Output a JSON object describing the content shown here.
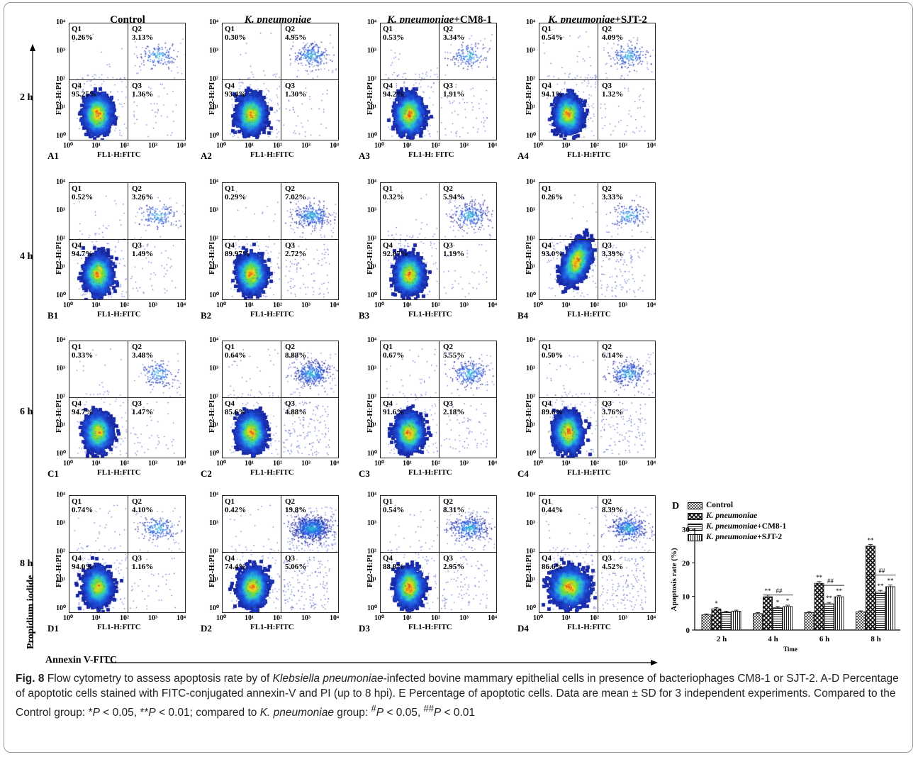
{
  "columns": [
    "Control",
    "K. pneumoniae",
    "K. pneumoniae+CM8-1",
    "K. pneumoniae+SJT-2"
  ],
  "rows": [
    "2 h",
    "4 h",
    "6 h",
    "8 h"
  ],
  "axis": {
    "y_label": "FL2-H:PI",
    "x_label": "FL1-H:FITC",
    "x_label_alt": "FL1-H: FITC"
  },
  "outer_axes": {
    "y": "Propidium iodide",
    "x": "Annexin V-FITC"
  },
  "quadrant_names": [
    "Q1",
    "Q2",
    "Q3",
    "Q4"
  ],
  "panels": [
    {
      "id": "A1",
      "q1": "0.26%",
      "q2": "3.13%",
      "q3": "1.36%",
      "q4": "95.25%"
    },
    {
      "id": "A2",
      "q1": "0.30%",
      "q2": "4.95%",
      "q3": "1.30%",
      "q4": "93.4%"
    },
    {
      "id": "A3",
      "q1": "0.53%",
      "q2": "3.34%",
      "q3": "1.91%",
      "q4": "94.2%"
    },
    {
      "id": "A4",
      "q1": "0.54%",
      "q2": "4.09%",
      "q3": "1.32%",
      "q4": "94.1%"
    },
    {
      "id": "B1",
      "q1": "0.52%",
      "q2": "3.26%",
      "q3": "1.49%",
      "q4": "94.7%"
    },
    {
      "id": "B2",
      "q1": "0.29%",
      "q2": "7.02%",
      "q3": "2.72%",
      "q4": "89.97%"
    },
    {
      "id": "B3",
      "q1": "0.32%",
      "q2": "5.94%",
      "q3": "1.19%",
      "q4": "92.87%"
    },
    {
      "id": "B4",
      "q1": "0.26%",
      "q2": "3.33%",
      "q3": "3.39%",
      "q4": "93.0%"
    },
    {
      "id": "C1",
      "q1": "0.33%",
      "q2": "3.48%",
      "q3": "1.47%",
      "q4": "94.7%"
    },
    {
      "id": "C2",
      "q1": "0.64%",
      "q2": "8.88%",
      "q3": "4.88%",
      "q4": "85.6%"
    },
    {
      "id": "C3",
      "q1": "0.67%",
      "q2": "5.55%",
      "q3": "2.18%",
      "q4": "91.6%"
    },
    {
      "id": "C4",
      "q1": "0.50%",
      "q2": "6.14%",
      "q3": "3.76%",
      "q4": "89.6%"
    },
    {
      "id": "D1",
      "q1": "0.74%",
      "q2": "4.10%",
      "q3": "1.16%",
      "q4": "94.0%"
    },
    {
      "id": "D2",
      "q1": "0.42%",
      "q2": "19.8%",
      "q3": "5.06%",
      "q4": "74.4%"
    },
    {
      "id": "D3",
      "q1": "0.54%",
      "q2": "8.31%",
      "q3": "2.95%",
      "q4": "88.8%"
    },
    {
      "id": "D4",
      "q1": "0.44%",
      "q2": "8.39%",
      "q3": "4.52%",
      "q4": "86.6%"
    }
  ],
  "chart_data": {
    "type": "bar",
    "panel_label": "D",
    "categories": [
      "2 h",
      "4 h",
      "6 h",
      "8 h"
    ],
    "xlabel": "Time",
    "ylabel": "Apoptosis rate (%)",
    "ylim": [
      0,
      30
    ],
    "yticks": [
      0,
      10,
      20,
      30
    ],
    "series": [
      {
        "name": "Control",
        "values": [
          4.5,
          4.9,
          5.2,
          5.4
        ],
        "errors": [
          0.3,
          0.3,
          0.3,
          0.3
        ],
        "marks": [
          "",
          "",
          "",
          ""
        ]
      },
      {
        "name": "K. pneumoniae",
        "values": [
          6.3,
          9.9,
          13.9,
          25.0
        ],
        "errors": [
          0.4,
          0.5,
          0.5,
          0.5
        ],
        "marks": [
          "*",
          "**",
          "**",
          "**"
        ]
      },
      {
        "name": "K. pneumoniae+CM8-1",
        "values": [
          5.3,
          6.6,
          7.8,
          11.3
        ],
        "errors": [
          0.3,
          0.4,
          0.4,
          0.5
        ],
        "marks": [
          "",
          "*",
          "**",
          "**"
        ]
      },
      {
        "name": "K. pneumoniae+SJT-2",
        "values": [
          5.6,
          7.0,
          9.9,
          12.9
        ],
        "errors": [
          0.3,
          0.4,
          0.4,
          0.5
        ],
        "marks": [
          "",
          "*",
          "**",
          "**"
        ]
      }
    ],
    "significance": [
      {
        "category": "4 h",
        "label": "##"
      },
      {
        "category": "6 h",
        "label": "##"
      },
      {
        "category": "8 h",
        "label": "##"
      }
    ],
    "legend_position": "top-left"
  },
  "caption": {
    "fig": "Fig. 8",
    "text_html": " Flow cytometry to assess apoptosis rate by of <i>Klebsiella pneumoniae</i>-infected bovine mammary epithelial cells in presence of bacteriophages CM8-1 or SJT-2. A-D Percentage of apoptotic cells stained with FITC-conjugated annexin-V and PI (up to 8 hpi). E Percentage of apoptotic cells. Data are mean ± SD for 3 independent experiments. Compared to the Control group: *<i>P</i> &lt; 0.05, **<i>P</i> &lt; 0.01; compared to <i>K. pneumoniae</i> group: <sup>#</sup><i>P</i> &lt; 0.05, <sup>##</sup><i>P</i> &lt; 0.01"
  }
}
